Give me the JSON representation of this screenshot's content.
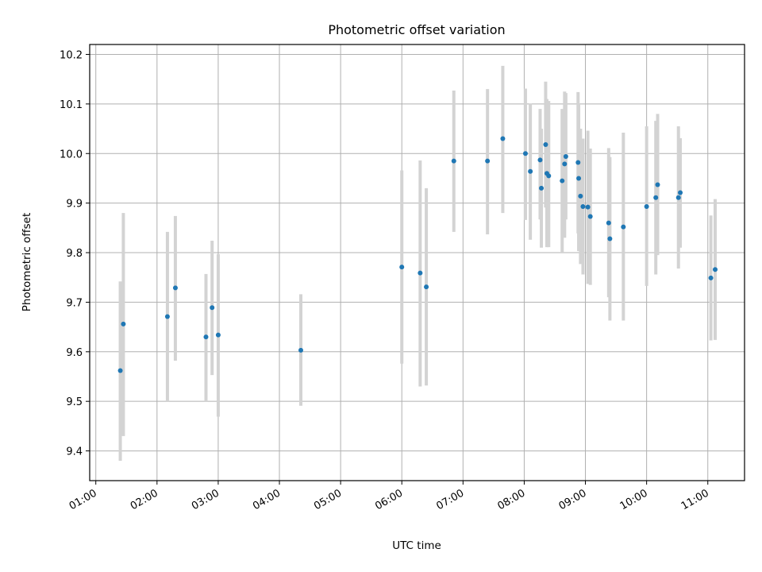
{
  "chart_data": {
    "type": "scatter",
    "title": "Photometric offset variation",
    "xlabel": "UTC time",
    "ylabel": "Photometric offset",
    "xlim_hours": [
      0.9,
      11.6
    ],
    "ylim": [
      9.34,
      10.22
    ],
    "grid": true,
    "xticks": [
      {
        "hour": 1,
        "label": "01:00"
      },
      {
        "hour": 2,
        "label": "02:00"
      },
      {
        "hour": 3,
        "label": "03:00"
      },
      {
        "hour": 4,
        "label": "04:00"
      },
      {
        "hour": 5,
        "label": "05:00"
      },
      {
        "hour": 6,
        "label": "06:00"
      },
      {
        "hour": 7,
        "label": "07:00"
      },
      {
        "hour": 8,
        "label": "08:00"
      },
      {
        "hour": 9,
        "label": "09:00"
      },
      {
        "hour": 10,
        "label": "10:00"
      },
      {
        "hour": 11,
        "label": "11:00"
      }
    ],
    "yticks": [
      {
        "value": 9.4,
        "label": "9.4"
      },
      {
        "value": 9.5,
        "label": "9.5"
      },
      {
        "value": 9.6,
        "label": "9.6"
      },
      {
        "value": 9.7,
        "label": "9.7"
      },
      {
        "value": 9.8,
        "label": "9.8"
      },
      {
        "value": 9.9,
        "label": "9.9"
      },
      {
        "value": 10.0,
        "label": "10.0"
      },
      {
        "value": 10.1,
        "label": "10.1"
      },
      {
        "value": 10.2,
        "label": "10.2"
      }
    ],
    "colors": {
      "point": "#1f77b4",
      "errorbar": "#d3d3d3",
      "grid": "#b0b0b0"
    },
    "points": [
      {
        "x": 1.4,
        "y": 9.562,
        "lo": 9.38,
        "hi": 9.742
      },
      {
        "x": 1.45,
        "y": 9.656,
        "lo": 9.43,
        "hi": 9.88
      },
      {
        "x": 2.17,
        "y": 9.671,
        "lo": 9.5,
        "hi": 9.842
      },
      {
        "x": 2.3,
        "y": 9.729,
        "lo": 9.582,
        "hi": 9.874
      },
      {
        "x": 2.8,
        "y": 9.63,
        "lo": 9.5,
        "hi": 9.757
      },
      {
        "x": 2.9,
        "y": 9.689,
        "lo": 9.553,
        "hi": 9.824
      },
      {
        "x": 3.0,
        "y": 9.634,
        "lo": 9.469,
        "hi": 9.797
      },
      {
        "x": 4.35,
        "y": 9.603,
        "lo": 9.491,
        "hi": 9.716
      },
      {
        "x": 6.0,
        "y": 9.771,
        "lo": 9.576,
        "hi": 9.966
      },
      {
        "x": 6.3,
        "y": 9.759,
        "lo": 9.53,
        "hi": 9.986
      },
      {
        "x": 6.4,
        "y": 9.731,
        "lo": 9.532,
        "hi": 9.93
      },
      {
        "x": 6.85,
        "y": 9.985,
        "lo": 9.842,
        "hi": 10.127
      },
      {
        "x": 7.4,
        "y": 9.985,
        "lo": 9.837,
        "hi": 10.13
      },
      {
        "x": 7.65,
        "y": 10.03,
        "lo": 9.88,
        "hi": 10.177
      },
      {
        "x": 8.02,
        "y": 10.0,
        "lo": 9.866,
        "hi": 10.131
      },
      {
        "x": 8.1,
        "y": 9.964,
        "lo": 9.826,
        "hi": 10.101
      },
      {
        "x": 8.26,
        "y": 9.987,
        "lo": 9.867,
        "hi": 10.09
      },
      {
        "x": 8.28,
        "y": 9.93,
        "lo": 9.81,
        "hi": 10.05
      },
      {
        "x": 8.35,
        "y": 10.018,
        "lo": 9.891,
        "hi": 10.145
      },
      {
        "x": 8.37,
        "y": 9.96,
        "lo": 9.811,
        "hi": 10.11
      },
      {
        "x": 8.4,
        "y": 9.955,
        "lo": 9.811,
        "hi": 10.106
      },
      {
        "x": 8.62,
        "y": 9.945,
        "lo": 9.8,
        "hi": 10.09
      },
      {
        "x": 8.66,
        "y": 9.979,
        "lo": 9.83,
        "hi": 10.125
      },
      {
        "x": 8.68,
        "y": 9.994,
        "lo": 9.867,
        "hi": 10.122
      },
      {
        "x": 8.88,
        "y": 9.982,
        "lo": 9.839,
        "hi": 10.124
      },
      {
        "x": 8.89,
        "y": 9.95,
        "lo": 9.803,
        "hi": 10.1
      },
      {
        "x": 8.92,
        "y": 9.914,
        "lo": 9.777,
        "hi": 10.05
      },
      {
        "x": 8.96,
        "y": 9.893,
        "lo": 9.756,
        "hi": 10.03
      },
      {
        "x": 9.04,
        "y": 9.892,
        "lo": 9.737,
        "hi": 10.046
      },
      {
        "x": 9.08,
        "y": 9.873,
        "lo": 9.735,
        "hi": 10.01
      },
      {
        "x": 9.38,
        "y": 9.86,
        "lo": 9.71,
        "hi": 10.011
      },
      {
        "x": 9.4,
        "y": 9.828,
        "lo": 9.663,
        "hi": 9.993
      },
      {
        "x": 9.62,
        "y": 9.852,
        "lo": 9.663,
        "hi": 10.042
      },
      {
        "x": 10.0,
        "y": 9.893,
        "lo": 9.733,
        "hi": 10.055
      },
      {
        "x": 10.15,
        "y": 9.911,
        "lo": 9.756,
        "hi": 10.066
      },
      {
        "x": 10.18,
        "y": 9.937,
        "lo": 9.795,
        "hi": 10.08
      },
      {
        "x": 10.52,
        "y": 9.911,
        "lo": 9.768,
        "hi": 10.055
      },
      {
        "x": 10.55,
        "y": 9.921,
        "lo": 9.81,
        "hi": 10.031
      },
      {
        "x": 11.05,
        "y": 9.749,
        "lo": 9.623,
        "hi": 9.875
      },
      {
        "x": 11.12,
        "y": 9.766,
        "lo": 9.624,
        "hi": 9.908
      }
    ]
  }
}
